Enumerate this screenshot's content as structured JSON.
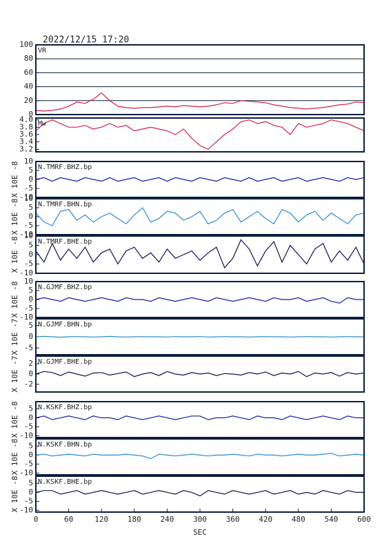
{
  "chart_data": [
    {
      "type": "line",
      "title": "2022/12/15  17:20",
      "label": "VR",
      "color": "#d0204a",
      "grid": true,
      "xlim": [
        0,
        600
      ],
      "ylim": [
        0,
        100
      ],
      "yticks": [
        0,
        20,
        40,
        60,
        80,
        100
      ],
      "x": [
        0,
        15,
        30,
        45,
        60,
        75,
        90,
        105,
        120,
        135,
        150,
        165,
        180,
        195,
        210,
        225,
        240,
        255,
        270,
        285,
        300,
        315,
        330,
        345,
        360,
        375,
        390,
        405,
        420,
        435,
        450,
        465,
        480,
        495,
        510,
        525,
        540,
        555,
        570,
        585,
        600
      ],
      "values": [
        6,
        5,
        6,
        8,
        12,
        18,
        16,
        22,
        31,
        20,
        12,
        10,
        9,
        10,
        10,
        11,
        12,
        11,
        13,
        12,
        11,
        12,
        14,
        17,
        16,
        20,
        19,
        18,
        17,
        14,
        12,
        10,
        9,
        8,
        9,
        10,
        12,
        14,
        15,
        18,
        17
      ]
    },
    {
      "type": "line",
      "label": "Mw",
      "color": "#d0204a",
      "xlim": [
        0,
        600
      ],
      "ylim": [
        3.13,
        4.05
      ],
      "yticks": [
        3.2,
        3.4,
        3.6,
        3.8,
        {
          "value": 4,
          "label": "4.0"
        }
      ],
      "x": [
        0,
        15,
        30,
        45,
        60,
        75,
        90,
        105,
        120,
        135,
        150,
        165,
        180,
        195,
        210,
        225,
        240,
        255,
        270,
        285,
        300,
        315,
        330,
        345,
        360,
        375,
        390,
        405,
        420,
        435,
        450,
        465,
        480,
        495,
        510,
        525,
        540,
        555,
        570,
        585,
        600
      ],
      "values": [
        3.7,
        3.9,
        4.0,
        3.9,
        3.8,
        3.8,
        3.85,
        3.75,
        3.8,
        3.9,
        3.8,
        3.85,
        3.7,
        3.75,
        3.8,
        3.75,
        3.7,
        3.6,
        3.75,
        3.5,
        3.3,
        3.2,
        3.4,
        3.6,
        3.75,
        3.95,
        4.0,
        3.9,
        3.95,
        3.85,
        3.8,
        3.6,
        3.9,
        3.8,
        3.85,
        3.9,
        4.0,
        3.95,
        3.9,
        3.8,
        3.7
      ]
    },
    {
      "type": "line",
      "label": "N.TMRF.BHZ.bp",
      "ylabel": "X 10E -8",
      "color": "#1a1aa0",
      "xlim": [
        0,
        600
      ],
      "ylim": [
        -10,
        10
      ],
      "yticks": [
        -10,
        -5,
        0,
        5,
        10
      ],
      "x": [
        0,
        15,
        30,
        45,
        60,
        75,
        90,
        105,
        120,
        135,
        150,
        165,
        180,
        195,
        210,
        225,
        240,
        255,
        270,
        285,
        300,
        315,
        330,
        345,
        360,
        375,
        390,
        405,
        420,
        435,
        450,
        465,
        480,
        495,
        510,
        525,
        540,
        555,
        570,
        585,
        600
      ],
      "values": [
        0,
        1,
        -1,
        1,
        0,
        -1,
        1,
        0,
        -1,
        1,
        -1,
        0,
        1,
        -1,
        0,
        1,
        -1,
        1,
        0,
        -1,
        1,
        0,
        -1,
        1,
        0,
        -1,
        1,
        -1,
        0,
        1,
        -1,
        0,
        1,
        -1,
        0,
        1,
        0,
        -1,
        1,
        0,
        1
      ]
    },
    {
      "type": "line",
      "label": "N.TMRF.BHN.bp",
      "ylabel": "X 10E -8",
      "color": "#2a8ad0",
      "xlim": [
        0,
        600
      ],
      "ylim": [
        -10,
        10
      ],
      "yticks": [
        -10,
        -5,
        0,
        5,
        10
      ],
      "x": [
        0,
        15,
        30,
        45,
        60,
        75,
        90,
        105,
        120,
        135,
        150,
        165,
        180,
        195,
        210,
        225,
        240,
        255,
        270,
        285,
        300,
        315,
        330,
        345,
        360,
        375,
        390,
        405,
        420,
        435,
        450,
        465,
        480,
        495,
        510,
        525,
        540,
        555,
        570,
        585,
        600
      ],
      "values": [
        2,
        -3,
        -5,
        3,
        4,
        -2,
        1,
        -3,
        0,
        2,
        -1,
        -4,
        1,
        5,
        -3,
        -1,
        3,
        2,
        -2,
        0,
        3,
        -4,
        -2,
        2,
        4,
        -3,
        0,
        3,
        -1,
        -4,
        4,
        2,
        -3,
        1,
        3,
        -2,
        2,
        -1,
        -4,
        1,
        2
      ]
    },
    {
      "type": "line",
      "label": "N.TMRF.BHE.bp",
      "ylabel": "X 10E -8",
      "color": "#101050",
      "xlim": [
        0,
        600
      ],
      "ylim": [
        -10,
        10
      ],
      "yticks": [
        -10,
        -5,
        0,
        5,
        10
      ],
      "x": [
        0,
        15,
        30,
        45,
        60,
        75,
        90,
        105,
        120,
        135,
        150,
        165,
        180,
        195,
        210,
        225,
        240,
        255,
        270,
        285,
        300,
        315,
        330,
        345,
        360,
        375,
        390,
        405,
        420,
        435,
        450,
        465,
        480,
        495,
        510,
        525,
        540,
        555,
        570,
        585,
        600
      ],
      "values": [
        2,
        -4,
        6,
        -3,
        3,
        -2,
        4,
        -4,
        1,
        3,
        -5,
        2,
        4,
        -2,
        1,
        -4,
        3,
        -2,
        0,
        2,
        -3,
        1,
        4,
        -7,
        -2,
        8,
        3,
        -6,
        2,
        7,
        -4,
        5,
        0,
        -5,
        3,
        6,
        -4,
        2,
        -3,
        4,
        -5
      ]
    },
    {
      "type": "line",
      "label": "N.GJMF.BHZ.bp",
      "ylabel": "X 10E -8",
      "color": "#1a1aa0",
      "xlim": [
        0,
        600
      ],
      "ylim": [
        -10,
        10
      ],
      "yticks": [
        -10,
        -5,
        0,
        5,
        10
      ],
      "x": [
        0,
        15,
        30,
        45,
        60,
        75,
        90,
        105,
        120,
        135,
        150,
        165,
        180,
        195,
        210,
        225,
        240,
        255,
        270,
        285,
        300,
        315,
        330,
        345,
        360,
        375,
        390,
        405,
        420,
        435,
        450,
        465,
        480,
        495,
        510,
        525,
        540,
        555,
        570,
        585,
        600
      ],
      "values": [
        0,
        1,
        0,
        -1,
        1,
        0,
        -1,
        0,
        1,
        0,
        -1,
        1,
        0,
        0,
        -1,
        1,
        0,
        -1,
        0,
        1,
        0,
        -1,
        1,
        0,
        -1,
        0,
        1,
        0,
        -1,
        1,
        0,
        0,
        1,
        -1,
        0,
        1,
        -1,
        -2,
        1,
        0,
        0
      ]
    },
    {
      "type": "line",
      "label": "N.GJMF.BHN.bp",
      "ylabel": "X 10E -7",
      "color": "#2a8ad0",
      "xlim": [
        0,
        600
      ],
      "ylim": [
        -8,
        8
      ],
      "yticks": [
        -5,
        0,
        5
      ],
      "x": [
        0,
        15,
        30,
        45,
        60,
        75,
        90,
        105,
        120,
        135,
        150,
        165,
        180,
        195,
        210,
        225,
        240,
        255,
        270,
        285,
        300,
        315,
        330,
        345,
        360,
        375,
        390,
        405,
        420,
        435,
        450,
        465,
        480,
        495,
        510,
        525,
        540,
        555,
        570,
        585,
        600
      ],
      "values": [
        0,
        0.2,
        0,
        -0.2,
        0,
        0.1,
        0,
        -0.1,
        0,
        0.2,
        0,
        -0.1,
        0,
        0.1,
        0,
        0,
        -0.1,
        0.1,
        0,
        0,
        0.1,
        -0.1,
        0,
        0.1,
        0,
        0,
        -0.1,
        0,
        0.1,
        0,
        0,
        -0.1,
        0,
        0.1,
        0,
        0,
        -0.1,
        0,
        0.1,
        0,
        0
      ]
    },
    {
      "type": "line",
      "label": "N.GJMF.BHE.bp",
      "ylabel": "X 10E -7",
      "color": "#101050",
      "xlim": [
        0,
        600
      ],
      "ylim": [
        -3.5,
        3.5
      ],
      "yticks": [
        -2,
        0,
        2
      ],
      "x": [
        0,
        15,
        30,
        45,
        60,
        75,
        90,
        105,
        120,
        135,
        150,
        165,
        180,
        195,
        210,
        225,
        240,
        255,
        270,
        285,
        300,
        315,
        330,
        345,
        360,
        375,
        390,
        405,
        420,
        435,
        450,
        465,
        480,
        495,
        510,
        525,
        540,
        555,
        570,
        585,
        600
      ],
      "values": [
        0,
        0.5,
        0.3,
        -0.3,
        0.4,
        0,
        -0.4,
        0.2,
        0.3,
        -0.2,
        0.1,
        0.4,
        -0.5,
        0,
        0.3,
        -0.3,
        0.5,
        0,
        -0.2,
        0.3,
        0,
        0.2,
        -0.3,
        0.1,
        0,
        -0.2,
        0.3,
        0,
        0.4,
        -0.3,
        0.2,
        0,
        0.5,
        -0.5,
        0.2,
        0,
        0.3,
        -0.4,
        0.3,
        0,
        0.2
      ]
    },
    {
      "type": "line",
      "label": "N.KSKF.BHZ.bp",
      "ylabel": "X 10E -8",
      "color": "#1a1aa0",
      "xlim": [
        0,
        600
      ],
      "ylim": [
        -11,
        9
      ],
      "yticks": [
        -10,
        -5,
        0,
        5
      ],
      "x": [
        0,
        15,
        30,
        45,
        60,
        75,
        90,
        105,
        120,
        135,
        150,
        165,
        180,
        195,
        210,
        225,
        240,
        255,
        270,
        285,
        300,
        315,
        330,
        345,
        360,
        375,
        390,
        405,
        420,
        435,
        450,
        465,
        480,
        495,
        510,
        525,
        540,
        555,
        570,
        585,
        600
      ],
      "values": [
        0,
        1,
        -1,
        0,
        1,
        0,
        -1,
        1,
        0,
        0,
        -1,
        1,
        0,
        -1,
        0,
        1,
        0,
        -1,
        0,
        1,
        1,
        -1,
        0,
        0,
        1,
        0,
        -1,
        1,
        0,
        0,
        -1,
        1,
        0,
        -1,
        0,
        1,
        0,
        -1,
        1,
        0,
        0
      ]
    },
    {
      "type": "line",
      "label": "N.KSKF.BHN.bp",
      "ylabel": "X 10E -8",
      "color": "#2a8ad0",
      "xlim": [
        0,
        600
      ],
      "ylim": [
        -11,
        9
      ],
      "yticks": [
        -10,
        -5,
        0,
        5
      ],
      "x": [
        0,
        15,
        30,
        45,
        60,
        75,
        90,
        105,
        120,
        135,
        150,
        165,
        180,
        195,
        210,
        225,
        240,
        255,
        270,
        285,
        300,
        315,
        330,
        345,
        360,
        375,
        390,
        405,
        420,
        435,
        450,
        465,
        480,
        495,
        510,
        525,
        540,
        555,
        570,
        585,
        600
      ],
      "values": [
        0,
        0.5,
        -0.5,
        0,
        0.5,
        0,
        -0.5,
        0.5,
        0,
        0,
        0,
        0.5,
        0,
        -0.5,
        -2,
        0.5,
        0,
        -0.5,
        0,
        0.5,
        0,
        -0.5,
        0,
        0,
        0.5,
        0,
        -0.5,
        0.5,
        0,
        0,
        -0.5,
        0,
        0.5,
        0,
        0,
        0.5,
        1,
        -0.5,
        0,
        0.5,
        0
      ]
    },
    {
      "type": "line",
      "label": "N.KSKF.BHE.bp",
      "ylabel": "X 10E -8",
      "color": "#101050",
      "xlim": [
        0,
        600
      ],
      "ylim": [
        -11,
        9
      ],
      "yticks": [
        -10,
        -5,
        0,
        5
      ],
      "xticks": [
        0,
        60,
        120,
        180,
        240,
        300,
        360,
        420,
        480,
        540,
        600
      ],
      "xlabel": "SEC",
      "x": [
        0,
        15,
        30,
        45,
        60,
        75,
        90,
        105,
        120,
        135,
        150,
        165,
        180,
        195,
        210,
        225,
        240,
        255,
        270,
        285,
        300,
        315,
        330,
        345,
        360,
        375,
        390,
        405,
        420,
        435,
        450,
        465,
        480,
        495,
        510,
        525,
        540,
        555,
        570,
        585,
        600
      ],
      "values": [
        0,
        1,
        1,
        -1,
        0,
        1,
        -1,
        0,
        1,
        0,
        -1,
        0,
        1,
        -1,
        0,
        1,
        0,
        -1,
        1,
        0,
        -2,
        1,
        0,
        -1,
        1,
        0,
        -1,
        0,
        1,
        -1,
        0,
        1,
        -1,
        0,
        -1,
        1,
        0,
        -1,
        1,
        0,
        0
      ]
    }
  ]
}
